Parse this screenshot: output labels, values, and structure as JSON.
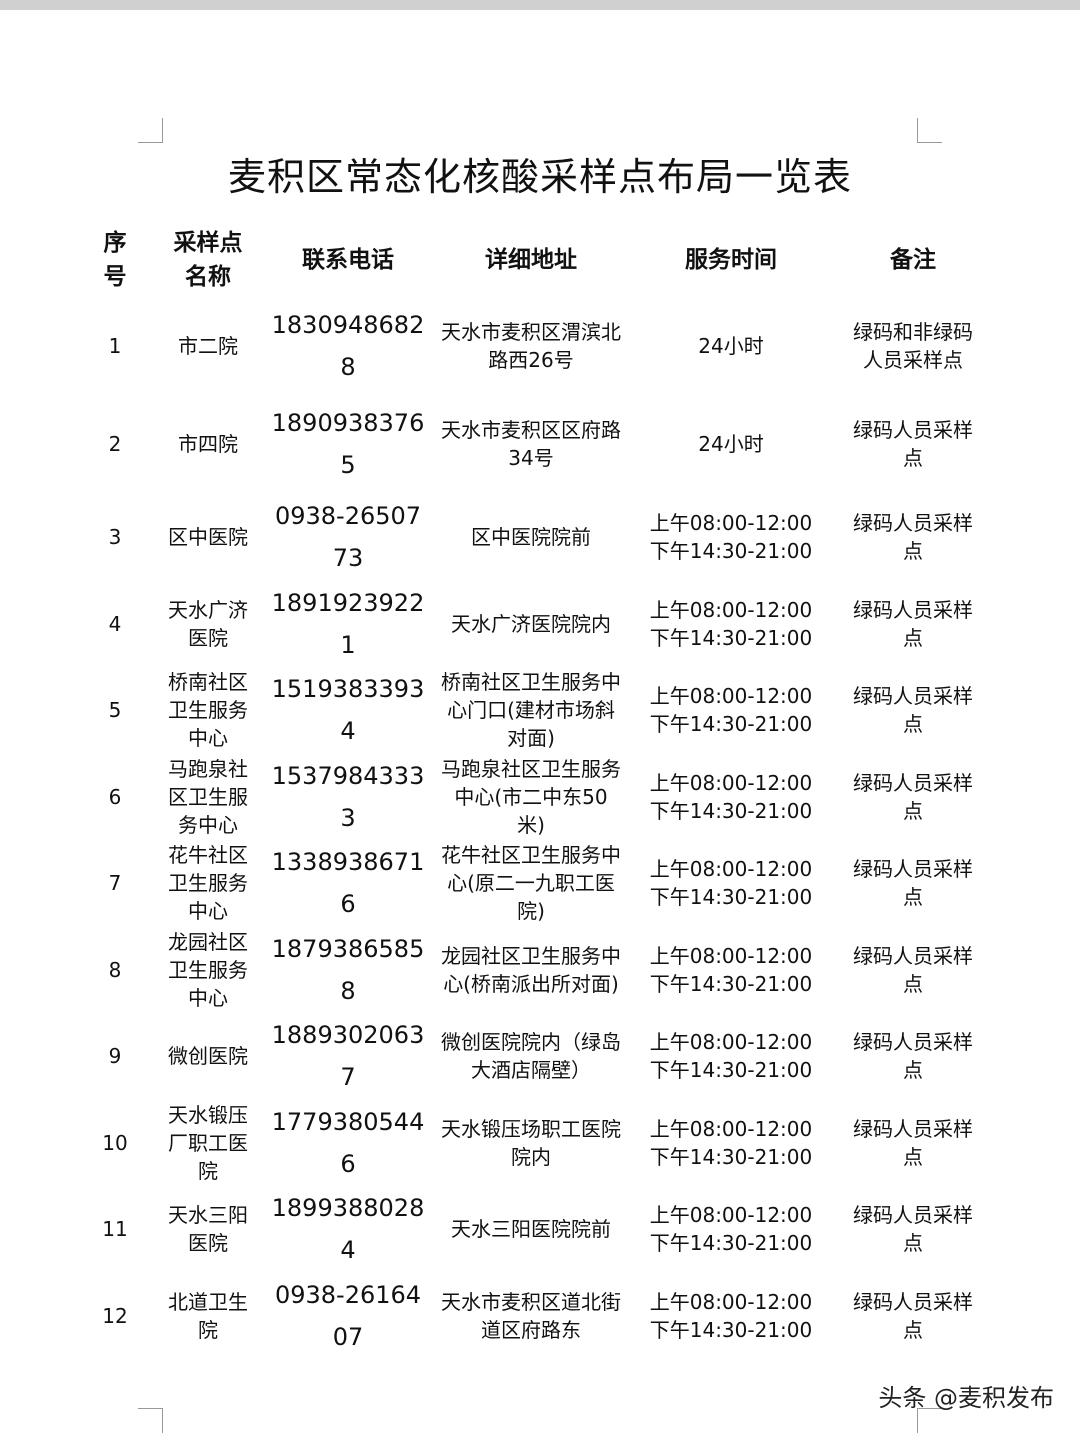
{
  "title": "麦积区常态化核酸采样点布局一览表",
  "headers": [
    "序号",
    "采样点名称",
    "联系电话",
    "详细地址",
    "服务时间",
    "备注"
  ],
  "rows": [
    {
      "no": "1",
      "name": "市二院",
      "phone": "18309486828",
      "address": "天水市麦积区渭滨北路西26号",
      "time": "24小时",
      "note": "绿码和非绿码人员采样点"
    },
    {
      "no": "2",
      "name": "市四院",
      "phone": "18909383765",
      "address": "天水市麦积区区府路34号",
      "time": "24小时",
      "note": "绿码人员采样点"
    },
    {
      "no": "3",
      "name": "区中医院",
      "phone": "0938-2650773",
      "address": "区中医院院前",
      "time": "上午08:00-12:00\n下午14:30-21:00",
      "note": "绿码人员采样点"
    },
    {
      "no": "4",
      "name": "天水广济医院",
      "phone": "18919239221",
      "address": "天水广济医院院内",
      "time": "上午08:00-12:00\n下午14:30-21:00",
      "note": "绿码人员采样点"
    },
    {
      "no": "5",
      "name": "桥南社区卫生服务中心",
      "phone": "15193833934",
      "address": "桥南社区卫生服务中心门口(建材市场斜对面)",
      "time": "上午08:00-12:00\n下午14:30-21:00",
      "note": "绿码人员采样点"
    },
    {
      "no": "6",
      "name": "马跑泉社区卫生服务中心",
      "phone": "15379843333",
      "address": "马跑泉社区卫生服务中心(市二中东50米)",
      "time": "上午08:00-12:00\n下午14:30-21:00",
      "note": "绿码人员采样点"
    },
    {
      "no": "7",
      "name": "花牛社区卫生服务中心",
      "phone": "13389386716",
      "address": "花牛社区卫生服务中心(原二一九职工医院)",
      "time": "上午08:00-12:00\n下午14:30-21:00",
      "note": "绿码人员采样点"
    },
    {
      "no": "8",
      "name": "龙园社区卫生服务中心",
      "phone": "18793865858",
      "address": "龙园社区卫生服务中心(桥南派出所对面)",
      "time": "上午08:00-12:00\n下午14:30-21:00",
      "note": "绿码人员采样点"
    },
    {
      "no": "9",
      "name": "微创医院",
      "phone": "18893020637",
      "address": "微创医院院内（绿岛大酒店隔壁）",
      "time": "上午08:00-12:00\n下午14:30-21:00",
      "note": "绿码人员采样点"
    },
    {
      "no": "10",
      "name": "天水锻压厂职工医院",
      "phone": "17793805446",
      "address": "天水锻压场职工医院院内",
      "time": "上午08:00-12:00\n下午14:30-21:00",
      "note": "绿码人员采样点"
    },
    {
      "no": "11",
      "name": "天水三阳医院",
      "phone": "18993880284",
      "address": "天水三阳医院院前",
      "time": "上午08:00-12:00\n下午14:30-21:00",
      "note": "绿码人员采样点"
    },
    {
      "no": "12",
      "name": "北道卫生院",
      "phone": "0938-2616407",
      "address": "天水市麦积区道北街道区府路东",
      "time": "上午08:00-12:00\n下午14:30-21:00",
      "note": "绿码人员采样点"
    }
  ],
  "footer": "头条 @麦积发布"
}
